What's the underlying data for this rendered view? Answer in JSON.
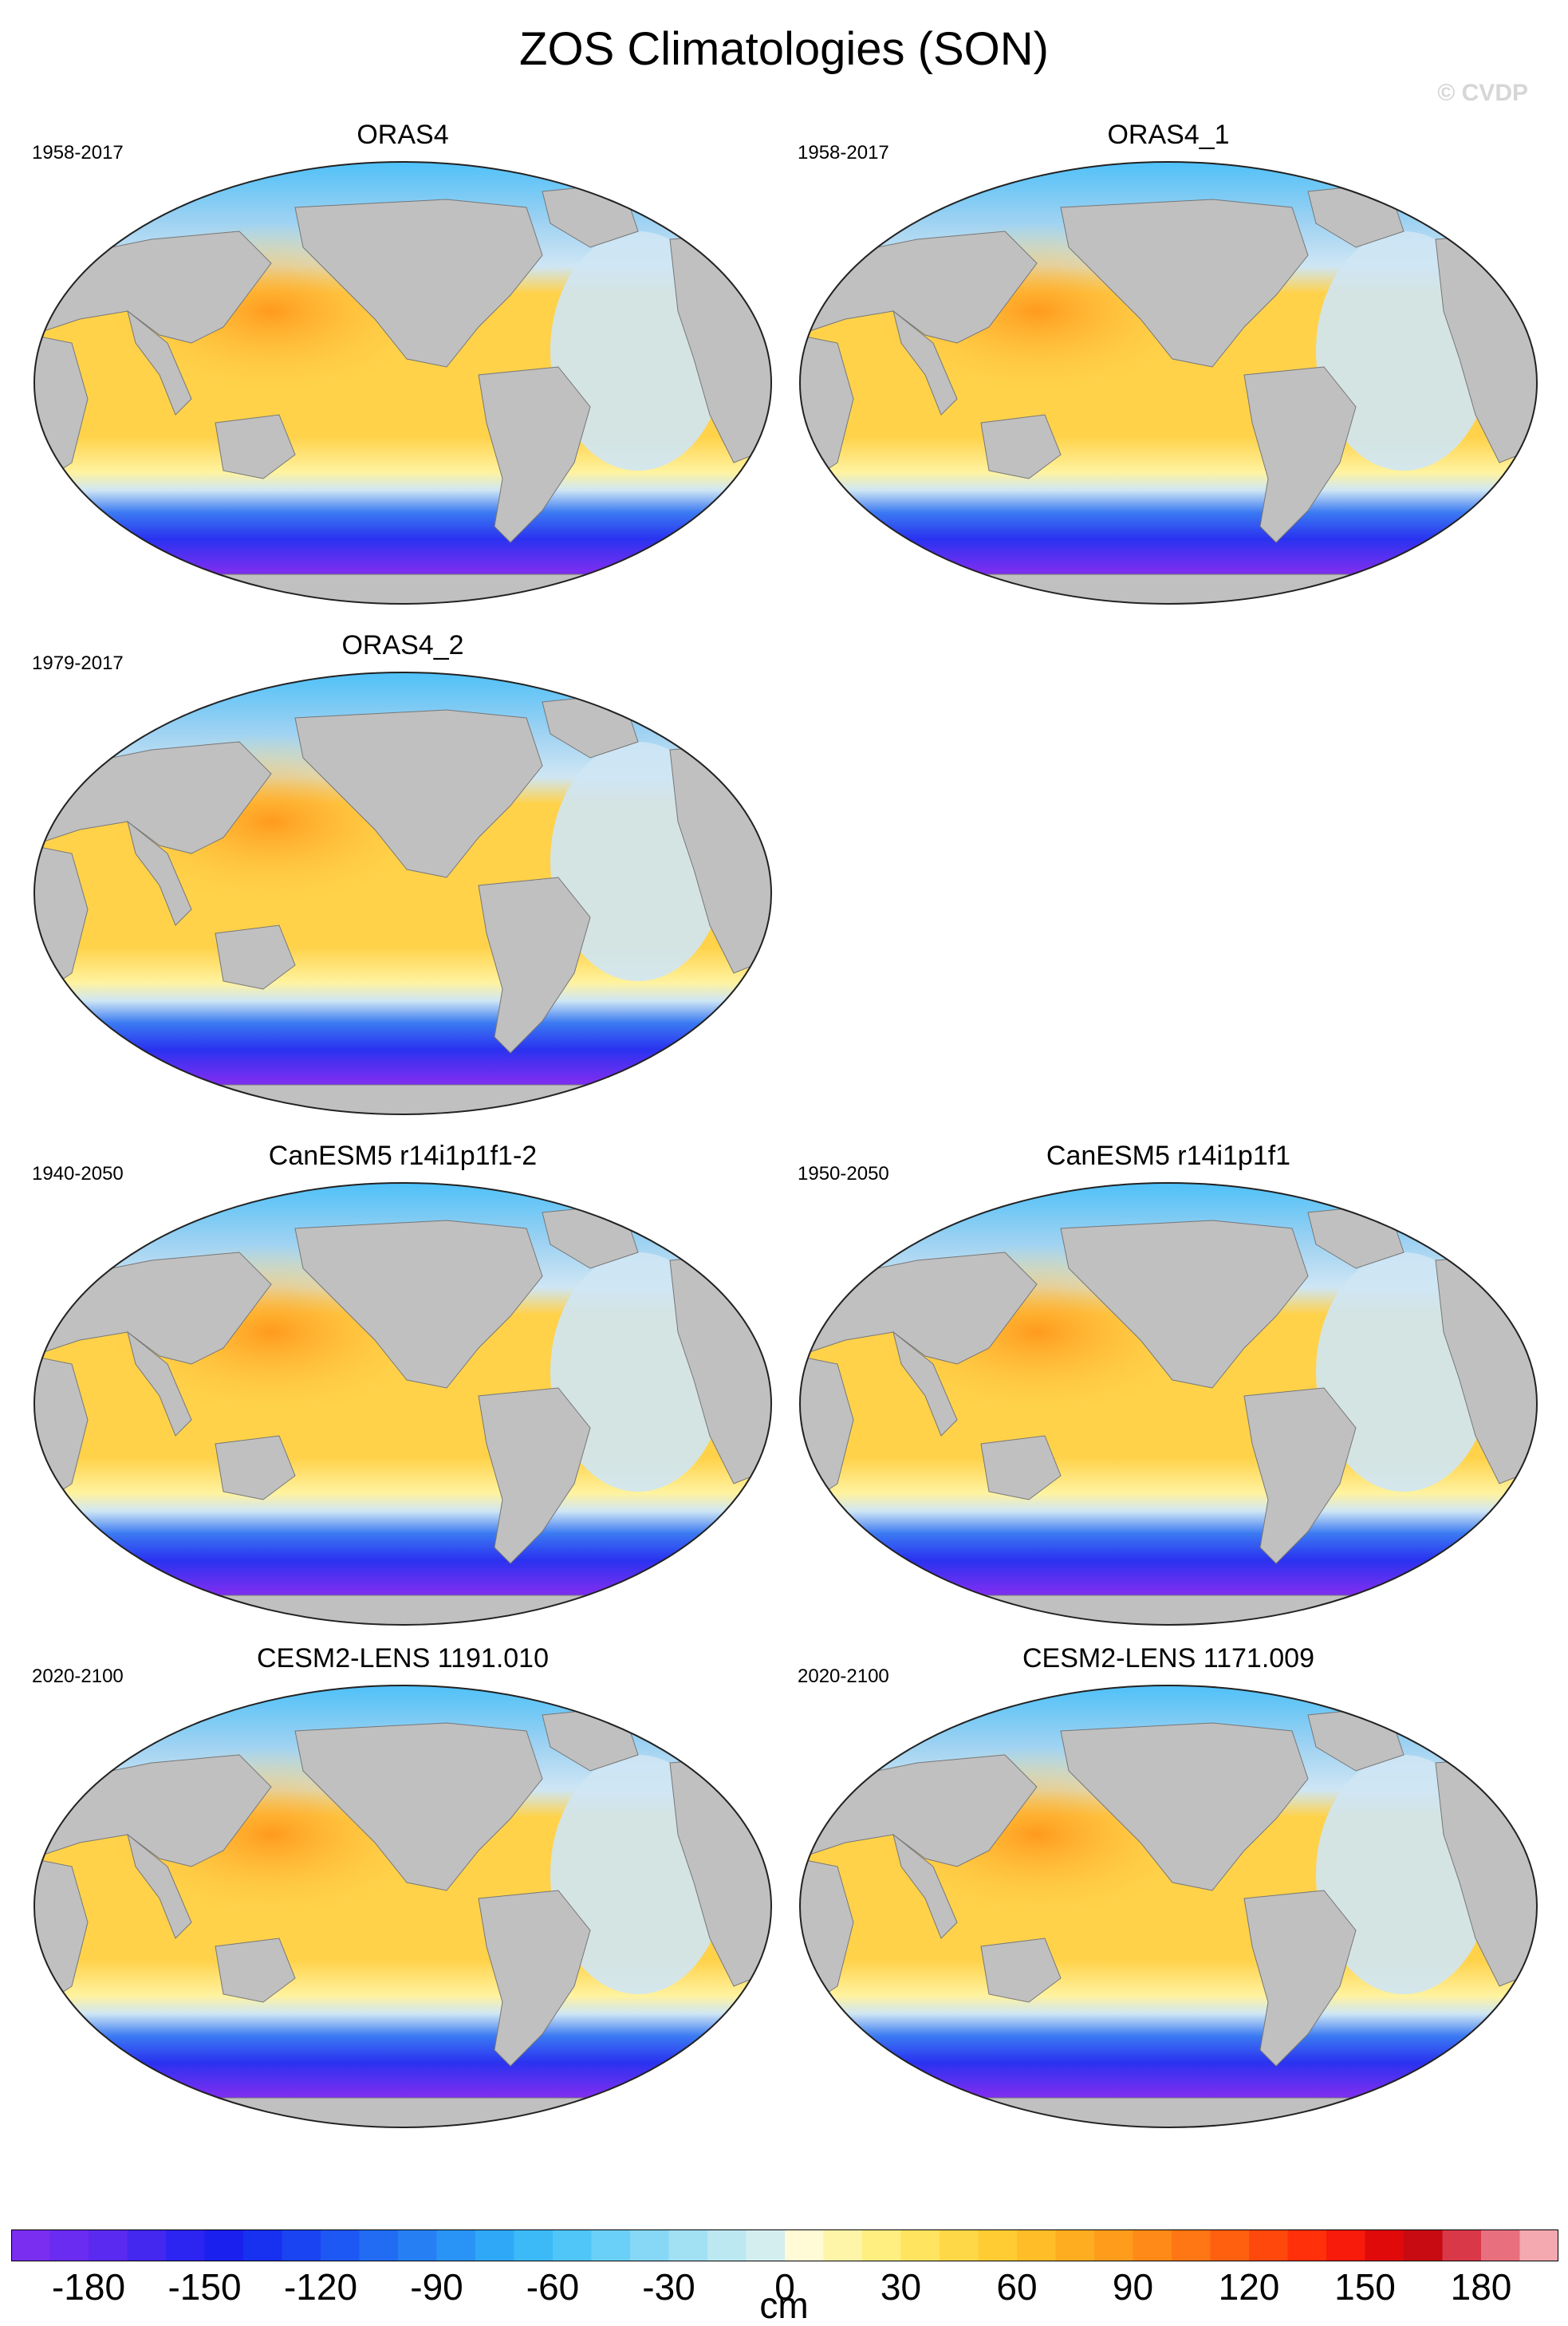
{
  "figure": {
    "title": "ZOS Climatologies (SON)",
    "watermark": "© CVDP",
    "units": "cm"
  },
  "panels": [
    {
      "title": "ORAS4",
      "years": "1958-2017",
      "slot": 0
    },
    {
      "title": "ORAS4_1",
      "years": "1958-2017",
      "slot": 1
    },
    {
      "title": "ORAS4_2",
      "years": "1979-2017",
      "slot": 2
    },
    {
      "title": "CanESM5 r14i1p1f1-2",
      "years": "1940-2050",
      "slot": 4
    },
    {
      "title": "CanESM5 r14i1p1f1",
      "years": "1950-2050",
      "slot": 5
    },
    {
      "title": "CESM2-LENS 1191.010",
      "years": "2020-2100",
      "slot": 6
    },
    {
      "title": "CESM2-LENS 1171.009",
      "years": "2020-2100",
      "slot": 7
    }
  ],
  "colorbar": {
    "min": -200,
    "max": 200,
    "step": 10,
    "tick_values": [
      -180,
      -150,
      -120,
      -90,
      -60,
      -30,
      0,
      30,
      60,
      90,
      120,
      150,
      180
    ],
    "tick_labels": [
      "-180",
      "-150",
      "-120",
      "-90",
      "-60",
      "-30",
      "0",
      "30",
      "60",
      "90",
      "120",
      "150",
      "180"
    ],
    "colors": [
      "#7a2ef0",
      "#6a2cf0",
      "#5a2af0",
      "#4428f0",
      "#2c24f0",
      "#1a20ee",
      "#1830f0",
      "#1a44f2",
      "#1e58f4",
      "#226cf4",
      "#2680f4",
      "#2a94f6",
      "#30a8f8",
      "#3cbaf8",
      "#50c6f8",
      "#6ad0f8",
      "#86d8f6",
      "#a2e0f4",
      "#bce8f2",
      "#d4eef0",
      "#fffbd6",
      "#fff5a8",
      "#ffee80",
      "#ffe460",
      "#ffd848",
      "#ffcc34",
      "#ffbd28",
      "#ffad20",
      "#ff9c1c",
      "#ff8a18",
      "#ff7614",
      "#ff6010",
      "#ff480c",
      "#ff300a",
      "#f81a0a",
      "#e00a0a",
      "#c80a12",
      "#d83848",
      "#e8707e",
      "#f4a8b0"
    ]
  },
  "colors": {
    "land": "#c0c0c0",
    "ocean_warm": "#ffd24a",
    "ocean_hot": "#ff9a1e",
    "ocean_cool": "#cfe6f4",
    "southern_band": "#2a32f0",
    "antarctic": "#7a2ef0",
    "arctic": "#4cc0f8"
  }
}
